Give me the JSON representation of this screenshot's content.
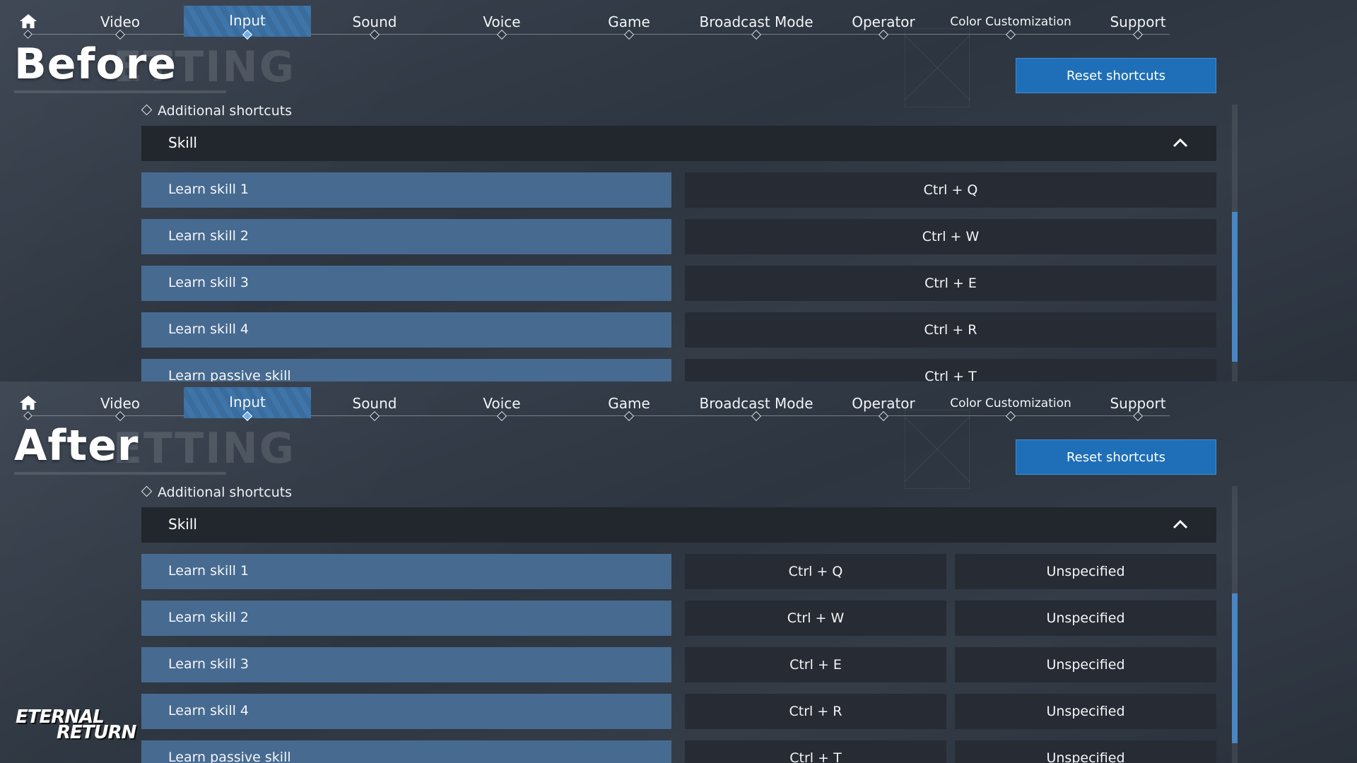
{
  "nav": {
    "tabs": [
      {
        "label": "Video"
      },
      {
        "label": "Input",
        "active": true
      },
      {
        "label": "Sound"
      },
      {
        "label": "Voice"
      },
      {
        "label": "Game"
      },
      {
        "label": "Broadcast Mode"
      },
      {
        "label": "Operator"
      },
      {
        "label": "Color Customization"
      },
      {
        "label": "Support"
      }
    ]
  },
  "before": {
    "heading": "Before",
    "ghost_text": "ETTING",
    "reset_label": "Reset shortcuts",
    "section_title": "Additional shortcuts",
    "group_label": "Skill",
    "rows": [
      {
        "label": "Learn skill 1",
        "key": "Ctrl + Q"
      },
      {
        "label": "Learn skill 2",
        "key": "Ctrl + W"
      },
      {
        "label": "Learn skill 3",
        "key": "Ctrl + E"
      },
      {
        "label": "Learn skill 4",
        "key": "Ctrl + R"
      },
      {
        "label": "Learn passive skill",
        "key": "Ctrl + T"
      }
    ]
  },
  "after": {
    "heading": "After",
    "ghost_text": "ETTING",
    "reset_label": "Reset shortcuts",
    "section_title": "Additional shortcuts",
    "group_label": "Skill",
    "rows": [
      {
        "label": "Learn skill 1",
        "key": "Ctrl + Q",
        "alt_key": "Unspecified"
      },
      {
        "label": "Learn skill 2",
        "key": "Ctrl + W",
        "alt_key": "Unspecified"
      },
      {
        "label": "Learn skill 3",
        "key": "Ctrl + E",
        "alt_key": "Unspecified"
      },
      {
        "label": "Learn skill 4",
        "key": "Ctrl + R",
        "alt_key": "Unspecified"
      },
      {
        "label": "Learn passive skill",
        "key": "Ctrl + T",
        "alt_key": "Unspecified"
      }
    ]
  },
  "logo": {
    "line1": "ETERNAL",
    "line2": "RETURN"
  },
  "icons": {
    "home": "home-icon",
    "collapse": "chevron-up-icon",
    "bullet": "diamond-icon"
  },
  "colors": {
    "accent": "#1f6fb8",
    "row_label": "#476a90",
    "key_cell": "#272c34"
  }
}
